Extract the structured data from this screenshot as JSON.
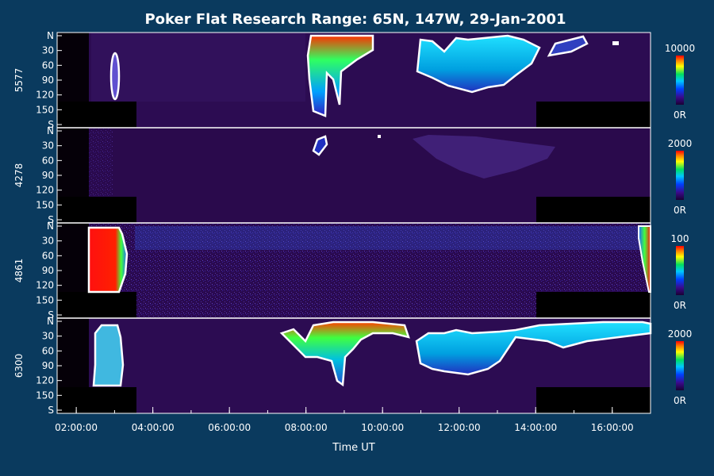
{
  "chart_data": {
    "type": "heatmap",
    "title": "Poker Flat Research Range: 65N, 147W, 29-Jan-2001",
    "xlabel": "Time UT",
    "x_ticks": [
      "02:00:00",
      "04:00:00",
      "06:00:00",
      "08:00:00",
      "10:00:00",
      "12:00:00",
      "14:00:00",
      "16:00:00"
    ],
    "x_range_hours": [
      1.5,
      17.0
    ],
    "y_ticks": [
      "N",
      "30",
      "60",
      "90",
      "120",
      "150",
      "S"
    ],
    "y_range": [
      0,
      180
    ],
    "panels": [
      {
        "label": "5577",
        "scale_max": "10000",
        "scale_min": "0R"
      },
      {
        "label": "4278",
        "scale_max": "2000",
        "scale_min": "0R"
      },
      {
        "label": "4861",
        "scale_max": "100",
        "scale_min": "0R"
      },
      {
        "label": "6300",
        "scale_max": "2000",
        "scale_min": "0R"
      }
    ],
    "colors": {
      "background": "#0a3a5e",
      "plot_background": "#2a0a4a",
      "contour": "#ffffff"
    }
  }
}
